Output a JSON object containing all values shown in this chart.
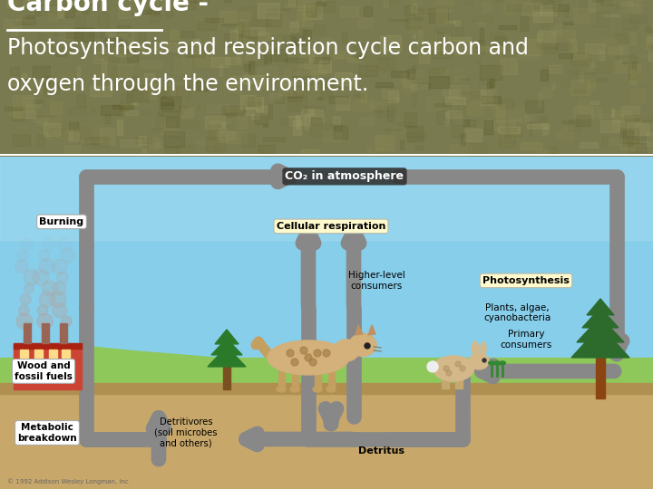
{
  "title_bold": "Carbon cycle -",
  "title_underline_part": "Carbon cycle",
  "subtitle_line1": "Photosynthesis and respiration cycle carbon and",
  "subtitle_line2": "oxygen through the environment.",
  "header_bg_color": "#7a7a50",
  "header_text_color": "#ffffff",
  "title_fontsize": 20,
  "subtitle_fontsize": 17,
  "sky_color": "#87CEEB",
  "sky_color_top": "#aaddee",
  "ground_color": "#8fc85a",
  "soil_color": "#c8a86a",
  "soil_dark": "#b09050",
  "arrow_color": "#888888",
  "arrow_lw": 12,
  "co2_label": "CO₂ in atmosphere",
  "burning_label": "Burning",
  "cellular_resp_label": "Cellular respiration",
  "photosynthesis_label": "Photosynthesis",
  "plants_label": "Plants, algae,\ncyanobacteria",
  "higher_consumers_label": "Higher-level\nconsumers",
  "primary_consumers_label": "Primary\nconsumers",
  "wood_fossil_label": "Wood and\nfossil fuels",
  "metabolic_label": "Metabolic\nbreakdown",
  "detritivores_label": "Detritivores\n(soil microbes\nand others)",
  "detritus_label": "Detritus",
  "copyright_label": "© 1992 Addison Wesley Longman, Inc",
  "fig_width": 7.2,
  "fig_height": 5.4,
  "dpi": 100
}
